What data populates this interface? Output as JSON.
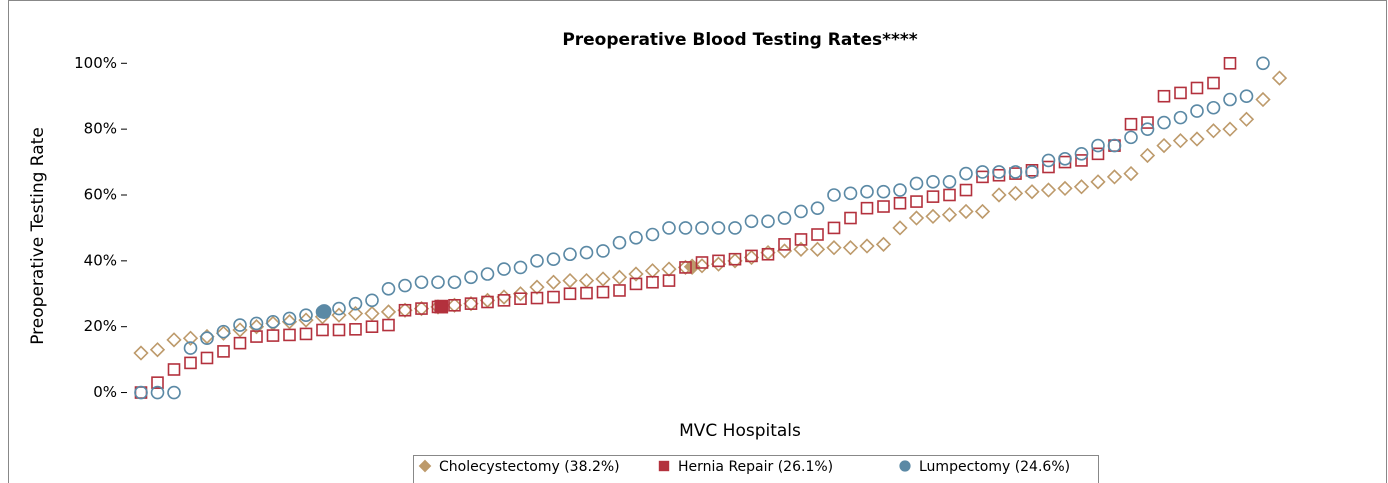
{
  "chart_data": {
    "type": "scatter",
    "title": "Preoperative Blood Testing Rates****",
    "x_label": "MVC Hospitals",
    "y_label": "Preoperative Testing Rate",
    "ylim": [
      -5,
      101
    ],
    "yticks": [
      {
        "value": 0,
        "label": "0%"
      },
      {
        "value": 20,
        "label": "20%"
      },
      {
        "value": 40,
        "label": "40%"
      },
      {
        "value": 60,
        "label": "60%"
      },
      {
        "value": 80,
        "label": "80%"
      },
      {
        "value": 100,
        "label": "100%"
      }
    ],
    "series": [
      {
        "name": "Cholecystectomy (38.2%)",
        "marker": "diamond",
        "color": "#bd9a6b",
        "mean": 38.2,
        "values": [
          12,
          13,
          16,
          16.5,
          17,
          18,
          19,
          20,
          21,
          21.5,
          22,
          23,
          23.5,
          24,
          24,
          24.5,
          25,
          25.5,
          26,
          26.5,
          27,
          28,
          29,
          30,
          32,
          33.5,
          34,
          34,
          34.5,
          35,
          36,
          37,
          37.5,
          38,
          38.5,
          39,
          40,
          41,
          42.5,
          43,
          43.5,
          43.5,
          44,
          44,
          44.5,
          45,
          50,
          53,
          53.5,
          54,
          55,
          55,
          60,
          60.5,
          61,
          61.5,
          62,
          62.5,
          64,
          65.5,
          66.5,
          72,
          75,
          76.5,
          77,
          79.5,
          80,
          83,
          89,
          95.5
        ]
      },
      {
        "name": "Hernia Repair (26.1%)",
        "marker": "square",
        "color": "#b3313d",
        "mean": 26.1,
        "values": [
          0,
          3,
          7,
          9,
          10.5,
          12.5,
          15,
          17,
          17.3,
          17.5,
          17.8,
          19,
          19,
          19.2,
          20,
          20.5,
          25,
          25.5,
          26,
          26.5,
          27,
          27.5,
          28,
          28.5,
          28.7,
          29,
          30,
          30.2,
          30.5,
          31,
          33,
          33.5,
          34,
          38,
          39.5,
          40,
          40.5,
          41.5,
          42,
          45,
          46.5,
          48,
          50,
          53,
          56,
          56.5,
          57.5,
          58,
          59.5,
          60,
          61.5,
          65.5,
          66,
          66.5,
          67.5,
          68.5,
          70,
          70.5,
          72.5,
          75,
          81.5,
          82,
          90,
          91,
          92.5,
          94,
          100
        ]
      },
      {
        "name": "Lumpectomy (24.6%)",
        "marker": "circle",
        "color": "#5b89a5",
        "mean": 24.6,
        "values": [
          0,
          0,
          0,
          13.5,
          16.5,
          18.5,
          20.5,
          21,
          21.5,
          22.5,
          23.5,
          24.5,
          25.5,
          27,
          28,
          31.5,
          32.5,
          33.5,
          33.5,
          33.5,
          35,
          36,
          37.5,
          38,
          40,
          40.5,
          42,
          42.5,
          43,
          45.5,
          47,
          48,
          50,
          50,
          50,
          50,
          50,
          52,
          52,
          53,
          55,
          56,
          60,
          60.5,
          61,
          61,
          61.5,
          63.5,
          64,
          64,
          66.5,
          67,
          67,
          67,
          67,
          70.5,
          71,
          72.5,
          75,
          75,
          77.5,
          80,
          82,
          83.5,
          85.5,
          86.5,
          89,
          90,
          100
        ]
      }
    ]
  }
}
